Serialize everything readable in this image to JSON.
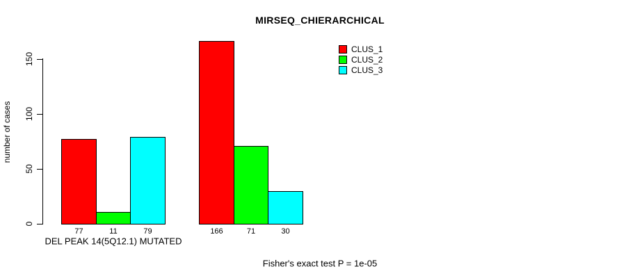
{
  "page": {
    "background_color": "#ffffff",
    "text_color": "#000000"
  },
  "chart_data": {
    "type": "bar",
    "title": "MIRSEQ_CHIERARCHICAL",
    "xlabel": "DEL PEAK 14(5Q12.1) MUTATED",
    "ylabel": "number of cases",
    "ylim": [
      0,
      170
    ],
    "yticks": [
      0,
      50,
      100,
      150
    ],
    "grid": false,
    "legend_position": "top-right",
    "groups": [
      {
        "label": "DEL PEAK 14(5Q12.1) MUTATED"
      },
      {
        "label": ""
      }
    ],
    "series": [
      {
        "name": "CLUS_1",
        "color": "#ff0000",
        "values": [
          77,
          166
        ]
      },
      {
        "name": "CLUS_2",
        "color": "#00ff00",
        "values": [
          11,
          71
        ]
      },
      {
        "name": "CLUS_3",
        "color": "#00ffff",
        "values": [
          79,
          30
        ]
      }
    ],
    "bar_value_labels": [
      [
        "77",
        "11",
        "79"
      ],
      [
        "166",
        "71",
        "30"
      ]
    ],
    "annotation": "Fisher's exact test P = 1e-05"
  }
}
